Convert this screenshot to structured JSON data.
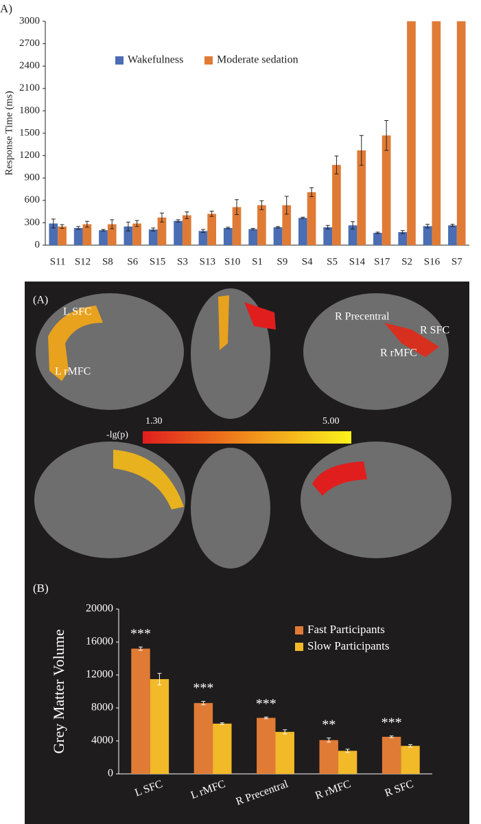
{
  "chart_data": [
    {
      "type": "bar",
      "panel_label": "A)",
      "y_label": "Response Time (ms)",
      "categories": [
        "S11",
        "S12",
        "S8",
        "S6",
        "S15",
        "S3",
        "S13",
        "S10",
        "S1",
        "S9",
        "S4",
        "S5",
        "S14",
        "S17",
        "S2",
        "S16",
        "S7"
      ],
      "series": [
        {
          "name": "Wakefulness",
          "color": "#4a6db3",
          "values": [
            290,
            230,
            200,
            250,
            210,
            325,
            190,
            230,
            215,
            240,
            365,
            240,
            265,
            165,
            175,
            255,
            265
          ],
          "errors": [
            60,
            20,
            10,
            60,
            20,
            15,
            20,
            10,
            10,
            10,
            10,
            25,
            50,
            10,
            20,
            25,
            15
          ]
        },
        {
          "name": "Moderate sedation",
          "color": "#e07b36",
          "values": [
            250,
            280,
            280,
            290,
            370,
            400,
            420,
            510,
            535,
            535,
            710,
            1075,
            1270,
            1470,
            3000,
            3000,
            3000
          ],
          "errors": [
            25,
            40,
            60,
            40,
            60,
            45,
            35,
            100,
            60,
            120,
            60,
            120,
            200,
            200,
            null,
            null,
            null
          ]
        }
      ],
      "ylim": [
        0,
        3000
      ],
      "yticks": [
        0,
        300,
        600,
        900,
        1200,
        1500,
        1800,
        2100,
        2400,
        2700,
        3000
      ],
      "grid": false,
      "legend": "top-left"
    },
    {
      "type": "bar",
      "panel_label": "(B)",
      "y_label": "Grey Matter Volume",
      "categories": [
        "L SFC",
        "L rMFC",
        "R Precentral",
        "R rMFC",
        "R SFC"
      ],
      "series": [
        {
          "name": "Fast Participants",
          "color": "#e07b36",
          "values": [
            15200,
            8600,
            6800,
            4100,
            4500
          ],
          "errors": [
            200,
            200,
            100,
            250,
            100
          ]
        },
        {
          "name": "Slow Participants",
          "color": "#f2b928",
          "values": [
            11500,
            6100,
            5100,
            2800,
            3400
          ],
          "errors": [
            700,
            100,
            250,
            200,
            150
          ]
        }
      ],
      "significance": [
        "***",
        "***",
        "***",
        "**",
        "***"
      ],
      "ylim": [
        0,
        20000
      ],
      "yticks": [
        0,
        4000,
        8000,
        12000,
        16000,
        20000
      ],
      "grid": false,
      "legend": "top-right"
    }
  ],
  "brain_panel": {
    "label": "(A)",
    "regions": [
      "L SFC",
      "L rMFC",
      "R Precentral",
      "R SFC",
      "R rMFC"
    ],
    "colorbar_title": "-lg(p)",
    "colorbar_labels": [
      "1.30",
      "5.00"
    ]
  }
}
